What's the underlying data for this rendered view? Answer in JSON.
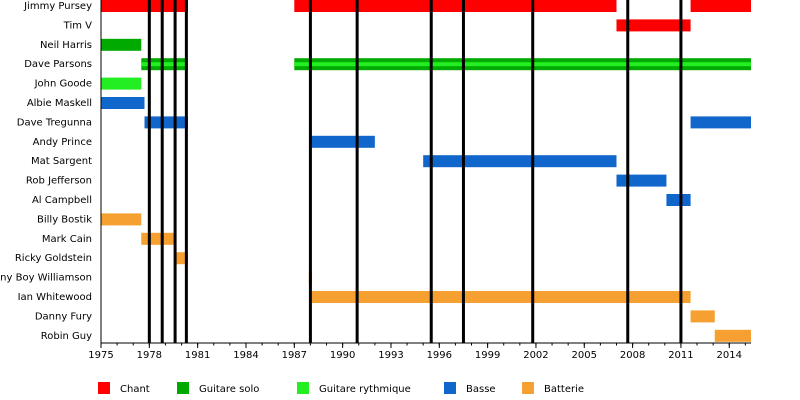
{
  "chart_data": {
    "type": "timeline",
    "categories": [
      "Jimmy Pursey",
      "Tim V",
      "Neil Harris",
      "Dave Parsons",
      "John Goode",
      "Albie Maskell",
      "Dave Tregunna",
      "Andy Prince",
      "Mat Sargent",
      "Rob Jefferson",
      "Al Campbell",
      "Billy Bostik",
      "Mark Cain",
      "Ricky Goldstein",
      "Johnny Boy Williamson",
      "Ian Whitewood",
      "Danny Fury",
      "Robin Guy"
    ],
    "series": [
      {
        "name": "Chant",
        "color": "#ff0000",
        "values": [
          [
            [
              1975,
              1980.4
            ],
            [
              1987.0,
              2007.0
            ],
            [
              2011.6,
              2015.35
            ]
          ],
          [
            [
              2007.0,
              2011.6
            ]
          ],
          null,
          null,
          null,
          null,
          null,
          null,
          null,
          null,
          null,
          null,
          null,
          null,
          null,
          null,
          null,
          null
        ]
      },
      {
        "name": "Guitare solo",
        "color": "#00aa00",
        "values": [
          null,
          null,
          [
            [
              1975,
              1977.5
            ]
          ],
          [
            [
              1977.5,
              1980.4
            ],
            [
              1987.0,
              2015.35
            ]
          ],
          null,
          null,
          null,
          null,
          null,
          null,
          null,
          null,
          null,
          null,
          null,
          null,
          null,
          null
        ]
      },
      {
        "name": "Guitare rythmique",
        "color": "#22ee22",
        "values": [
          null,
          null,
          null,
          [
            [
              1977.5,
              1980.4
            ],
            [
              1987.0,
              2015.35
            ]
          ],
          [
            [
              1975,
              1977.5
            ]
          ],
          null,
          null,
          null,
          null,
          null,
          null,
          null,
          null,
          null,
          null,
          null,
          null,
          null
        ]
      },
      {
        "name": "Basse",
        "color": "#1166cc",
        "values": [
          null,
          null,
          null,
          null,
          null,
          [
            [
              1975,
              1977.7
            ]
          ],
          [
            [
              1977.7,
              1980.4
            ],
            [
              2011.6,
              2015.35
            ]
          ],
          [
            [
              1988.0,
              1992.0
            ]
          ],
          [
            [
              1995.0,
              2007.0
            ]
          ],
          [
            [
              2007.0,
              2010.1
            ]
          ],
          [
            [
              2010.1,
              2011.6
            ]
          ],
          null,
          null,
          null,
          null,
          null,
          null,
          null
        ]
      },
      {
        "name": "Batterie",
        "color": "#f5a030",
        "values": [
          null,
          null,
          null,
          null,
          null,
          null,
          null,
          null,
          null,
          null,
          null,
          [
            [
              1975,
              1977.5
            ]
          ],
          [
            [
              1977.5,
              1979.6
            ]
          ],
          [
            [
              1979.6,
              1980.4
            ]
          ],
          [
            [
              1987.9,
              1988.1
            ]
          ],
          [
            [
              1988.1,
              2011.6
            ]
          ],
          [
            [
              2011.6,
              2013.1
            ]
          ],
          [
            [
              2013.1,
              2015.35
            ]
          ]
        ]
      }
    ],
    "events": [
      1978.0,
      1978.8,
      1979.6,
      1980.3,
      1988.0,
      1990.9,
      1995.5,
      1997.5,
      2001.8,
      2007.7,
      2011.0
    ],
    "xlim": [
      1975,
      2015.35
    ],
    "xticks": [
      1975,
      1978,
      1981,
      1984,
      1987,
      1990,
      1993,
      1996,
      1999,
      2002,
      2005,
      2008,
      2011,
      2014
    ]
  }
}
